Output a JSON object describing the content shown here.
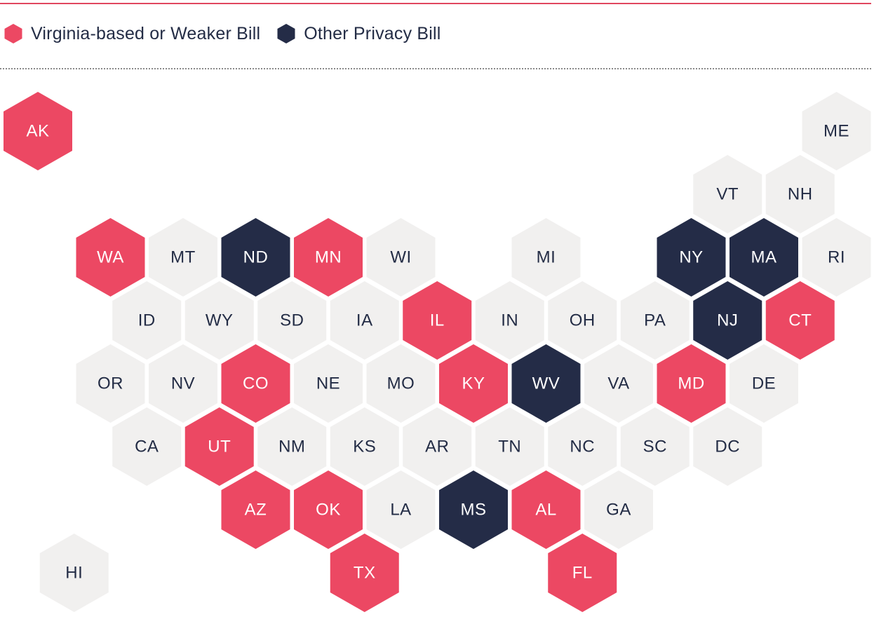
{
  "legend": {
    "virginia_label": "Virginia-based or Weaker Bill",
    "other_label": "Other Privacy Bill"
  },
  "colors": {
    "virginia": "#ec4863",
    "other": "#242c47",
    "none": "#f1f0ef",
    "text_light": "#ffffff",
    "text_dark": "#232c45",
    "top_rule": "#e0475f"
  },
  "states": [
    {
      "abbr": "AK",
      "row": 0,
      "col": 0,
      "status": "virginia"
    },
    {
      "abbr": "ME",
      "row": 0,
      "col": 11,
      "status": "none"
    },
    {
      "abbr": "VT",
      "row": 1,
      "col": 9.5,
      "status": "none"
    },
    {
      "abbr": "NH",
      "row": 1,
      "col": 10.5,
      "status": "none"
    },
    {
      "abbr": "WA",
      "row": 2,
      "col": 1,
      "status": "virginia"
    },
    {
      "abbr": "MT",
      "row": 2,
      "col": 2,
      "status": "none"
    },
    {
      "abbr": "ND",
      "row": 2,
      "col": 3,
      "status": "other"
    },
    {
      "abbr": "MN",
      "row": 2,
      "col": 4,
      "status": "virginia"
    },
    {
      "abbr": "WI",
      "row": 2,
      "col": 5,
      "status": "none"
    },
    {
      "abbr": "MI",
      "row": 2,
      "col": 7,
      "status": "none"
    },
    {
      "abbr": "NY",
      "row": 2,
      "col": 9,
      "status": "other"
    },
    {
      "abbr": "MA",
      "row": 2,
      "col": 10,
      "status": "other"
    },
    {
      "abbr": "RI",
      "row": 2,
      "col": 11,
      "status": "none"
    },
    {
      "abbr": "ID",
      "row": 3,
      "col": 1.5,
      "status": "none"
    },
    {
      "abbr": "WY",
      "row": 3,
      "col": 2.5,
      "status": "none"
    },
    {
      "abbr": "SD",
      "row": 3,
      "col": 3.5,
      "status": "none"
    },
    {
      "abbr": "IA",
      "row": 3,
      "col": 4.5,
      "status": "none"
    },
    {
      "abbr": "IL",
      "row": 3,
      "col": 5.5,
      "status": "virginia"
    },
    {
      "abbr": "IN",
      "row": 3,
      "col": 6.5,
      "status": "none"
    },
    {
      "abbr": "OH",
      "row": 3,
      "col": 7.5,
      "status": "none"
    },
    {
      "abbr": "PA",
      "row": 3,
      "col": 8.5,
      "status": "none"
    },
    {
      "abbr": "NJ",
      "row": 3,
      "col": 9.5,
      "status": "other"
    },
    {
      "abbr": "CT",
      "row": 3,
      "col": 10.5,
      "status": "virginia"
    },
    {
      "abbr": "OR",
      "row": 4,
      "col": 1,
      "status": "none"
    },
    {
      "abbr": "NV",
      "row": 4,
      "col": 2,
      "status": "none"
    },
    {
      "abbr": "CO",
      "row": 4,
      "col": 3,
      "status": "virginia"
    },
    {
      "abbr": "NE",
      "row": 4,
      "col": 4,
      "status": "none"
    },
    {
      "abbr": "MO",
      "row": 4,
      "col": 5,
      "status": "none"
    },
    {
      "abbr": "KY",
      "row": 4,
      "col": 6,
      "status": "virginia"
    },
    {
      "abbr": "WV",
      "row": 4,
      "col": 7,
      "status": "other"
    },
    {
      "abbr": "VA",
      "row": 4,
      "col": 8,
      "status": "none"
    },
    {
      "abbr": "MD",
      "row": 4,
      "col": 9,
      "status": "virginia"
    },
    {
      "abbr": "DE",
      "row": 4,
      "col": 10,
      "status": "none"
    },
    {
      "abbr": "CA",
      "row": 5,
      "col": 1.5,
      "status": "none"
    },
    {
      "abbr": "UT",
      "row": 5,
      "col": 2.5,
      "status": "virginia"
    },
    {
      "abbr": "NM",
      "row": 5,
      "col": 3.5,
      "status": "none"
    },
    {
      "abbr": "KS",
      "row": 5,
      "col": 4.5,
      "status": "none"
    },
    {
      "abbr": "AR",
      "row": 5,
      "col": 5.5,
      "status": "none"
    },
    {
      "abbr": "TN",
      "row": 5,
      "col": 6.5,
      "status": "none"
    },
    {
      "abbr": "NC",
      "row": 5,
      "col": 7.5,
      "status": "none"
    },
    {
      "abbr": "SC",
      "row": 5,
      "col": 8.5,
      "status": "none"
    },
    {
      "abbr": "DC",
      "row": 5,
      "col": 9.5,
      "status": "none"
    },
    {
      "abbr": "AZ",
      "row": 6,
      "col": 3,
      "status": "virginia"
    },
    {
      "abbr": "OK",
      "row": 6,
      "col": 4,
      "status": "virginia"
    },
    {
      "abbr": "LA",
      "row": 6,
      "col": 5,
      "status": "none"
    },
    {
      "abbr": "MS",
      "row": 6,
      "col": 6,
      "status": "other"
    },
    {
      "abbr": "AL",
      "row": 6,
      "col": 7,
      "status": "virginia"
    },
    {
      "abbr": "GA",
      "row": 6,
      "col": 8,
      "status": "none"
    },
    {
      "abbr": "HI",
      "row": 7,
      "col": 0.5,
      "status": "none"
    },
    {
      "abbr": "TX",
      "row": 7,
      "col": 4.5,
      "status": "virginia"
    },
    {
      "abbr": "FL",
      "row": 7,
      "col": 7.5,
      "status": "virginia"
    }
  ]
}
